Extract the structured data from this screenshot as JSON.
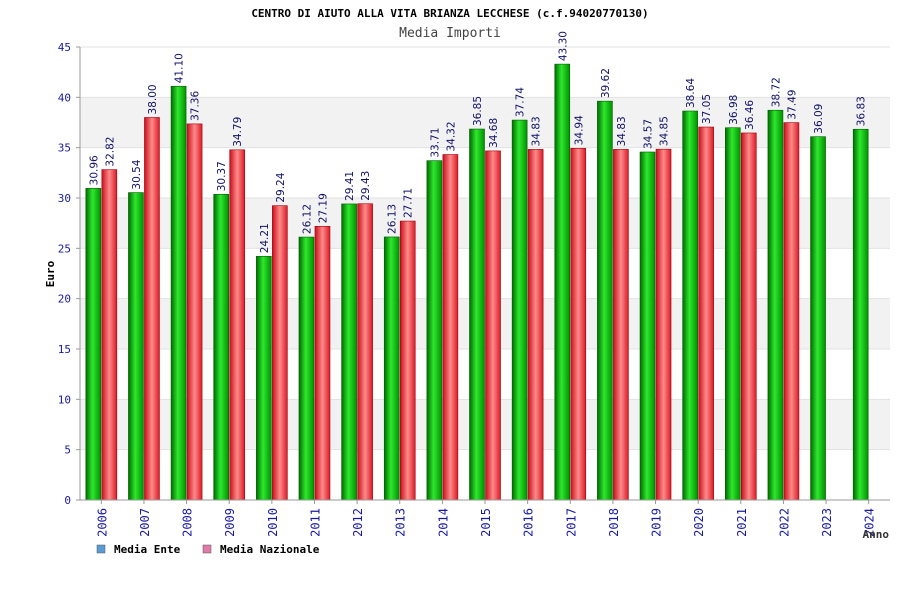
{
  "chart_data": {
    "type": "bar",
    "title": "CENTRO DI AIUTO ALLA VITA BRIANZA LECCHESE (c.f.94020770130)",
    "subtitle": "Media Importi",
    "xlabel": "Anno",
    "ylabel": "Euro",
    "ylim": [
      0,
      45
    ],
    "yticks": [
      0,
      5,
      10,
      15,
      20,
      25,
      30,
      35,
      40,
      45
    ],
    "grid": "horizontal-bands",
    "legend_position": "bottom-left",
    "categories": [
      "2006",
      "2007",
      "2008",
      "2009",
      "2010",
      "2011",
      "2012",
      "2013",
      "2014",
      "2015",
      "2016",
      "2017",
      "2018",
      "2019",
      "2020",
      "2021",
      "2022",
      "2023",
      "2024"
    ],
    "series": [
      {
        "name": "Media Ente",
        "color": "#00b000",
        "legend_color": "#5b9bd5",
        "values": [
          30.96,
          30.54,
          41.1,
          30.37,
          24.21,
          26.12,
          29.41,
          26.13,
          33.71,
          36.85,
          37.74,
          43.3,
          39.62,
          34.57,
          38.64,
          36.98,
          38.72,
          36.09,
          36.83
        ],
        "labels": [
          "30.96",
          "30.54",
          "41.10",
          "30.37",
          "24.21",
          "26.12",
          "29.41",
          "26.13",
          "33.71",
          "36.85",
          "37.74",
          "43.30",
          "39.62",
          "34.57",
          "38.64",
          "36.98",
          "38.72",
          "36.09",
          "36.83"
        ]
      },
      {
        "name": "Media Nazionale",
        "color": "#e8202a",
        "legend_color": "#e07aa8",
        "values": [
          32.82,
          38.0,
          37.36,
          34.79,
          29.24,
          27.19,
          29.43,
          27.71,
          34.32,
          34.68,
          34.83,
          34.94,
          34.83,
          34.85,
          37.05,
          36.46,
          37.49,
          null,
          null
        ],
        "labels": [
          "32.82",
          "38.00",
          "37.36",
          "34.79",
          "29.24",
          "27.19",
          "29.43",
          "27.71",
          "34.32",
          "34.68",
          "34.83",
          "34.94",
          "34.83",
          "34.85",
          "37.05",
          "36.46",
          "37.49",
          null,
          null
        ]
      }
    ]
  }
}
